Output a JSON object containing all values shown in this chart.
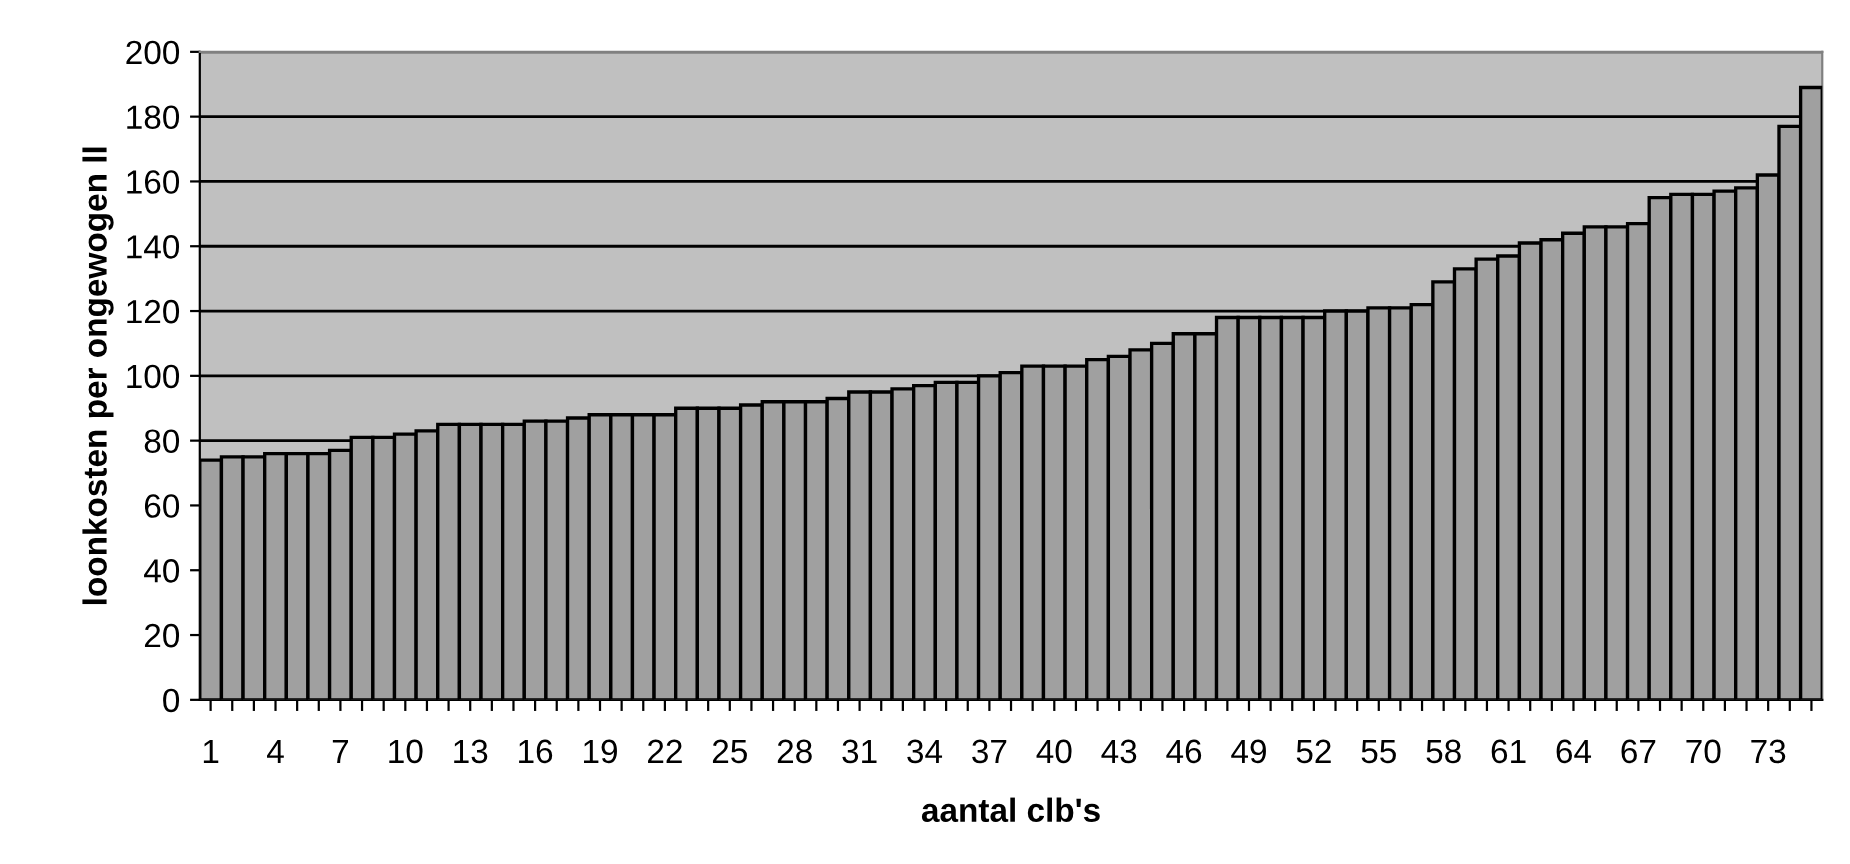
{
  "chart_data": {
    "type": "bar",
    "xlabel": "aantal clb's",
    "ylabel": "loonkosten per ongewogen ll",
    "categories": [
      "1",
      null,
      null,
      "4",
      null,
      null,
      "7",
      null,
      null,
      "10",
      null,
      null,
      "13",
      null,
      null,
      "16",
      null,
      null,
      "19",
      null,
      null,
      "22",
      null,
      null,
      "25",
      null,
      null,
      "28",
      null,
      null,
      "31",
      null,
      null,
      "34",
      null,
      null,
      "37",
      null,
      null,
      "40",
      null,
      null,
      "43",
      null,
      null,
      "46",
      null,
      null,
      "49",
      null,
      null,
      "52",
      null,
      null,
      "55",
      null,
      null,
      "58",
      null,
      null,
      "61",
      null,
      null,
      "64",
      null,
      null,
      "67",
      null,
      null,
      "70",
      null,
      null,
      "73",
      null,
      null
    ],
    "series": [
      {
        "color": "#a0a0a0",
        "values": [
          74,
          75,
          75,
          76,
          76,
          76,
          77,
          81,
          81,
          82,
          83,
          85,
          85,
          85,
          85,
          86,
          86,
          87,
          88,
          88,
          88,
          88,
          90,
          90,
          90,
          91,
          92,
          92,
          92,
          93,
          95,
          95,
          96,
          97,
          98,
          98,
          100,
          101,
          103,
          103,
          103,
          105,
          106,
          108,
          110,
          113,
          113,
          118,
          118,
          118,
          118,
          118,
          120,
          120,
          121,
          121,
          122,
          129,
          133,
          136,
          137,
          141,
          142,
          144,
          146,
          146,
          147,
          155,
          156,
          156,
          157,
          158,
          162,
          177,
          189
        ]
      }
    ],
    "ylim": [
      0,
      200
    ],
    "yticks": [
      0,
      20,
      40,
      60,
      80,
      100,
      120,
      140,
      160,
      180,
      200
    ],
    "grid": "y",
    "legend": false
  }
}
